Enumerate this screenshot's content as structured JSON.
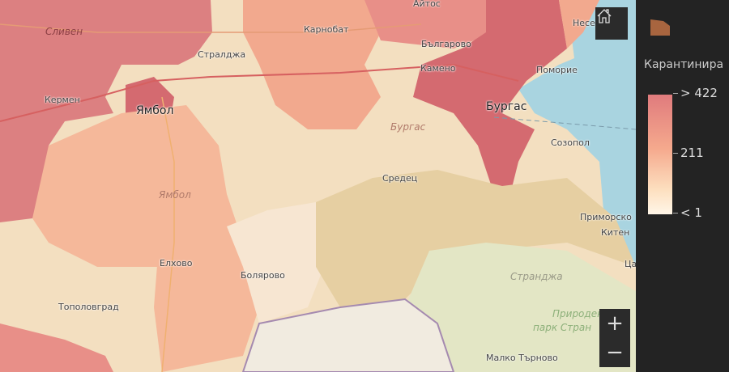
{
  "map": {
    "places": {
      "sliven": "Сливен",
      "karnobat": "Карнобат",
      "aytos": "Айтос",
      "nesebar": "Несе",
      "bulgarovo": "Българово",
      "straldzha": "Стралджа",
      "kameno": "Камено",
      "pomorie": "Поморие",
      "kermen": "Кермен",
      "yambol": "Ямбол",
      "burgas": "Бургас",
      "burgas_region": "Бургас",
      "sozopol": "Созопол",
      "sredets": "Средец",
      "yambol_region": "Ямбол",
      "primorsko": "Приморско",
      "kiten": "Китен",
      "tsarevo": "Ца",
      "elhovo": "Елхово",
      "bolyarovo": "Болярово",
      "strandzha": "Странджа",
      "topolovgrad": "Тополовград",
      "park_line1": "Природен",
      "park_line2": "парк Стран",
      "malko_tarnovo": "Малко Търново"
    },
    "controls": {
      "zoom_in": "+",
      "zoom_out": "−",
      "home_icon": "home-icon"
    }
  },
  "legend": {
    "title": "Карантинира",
    "max_label": "> 422",
    "mid_label": "211",
    "min_label": "< 1",
    "swatch_color": "#a8653f",
    "ramp_colors": [
      "#e07b7d",
      "#f5a98d",
      "#fff6e8"
    ]
  }
}
